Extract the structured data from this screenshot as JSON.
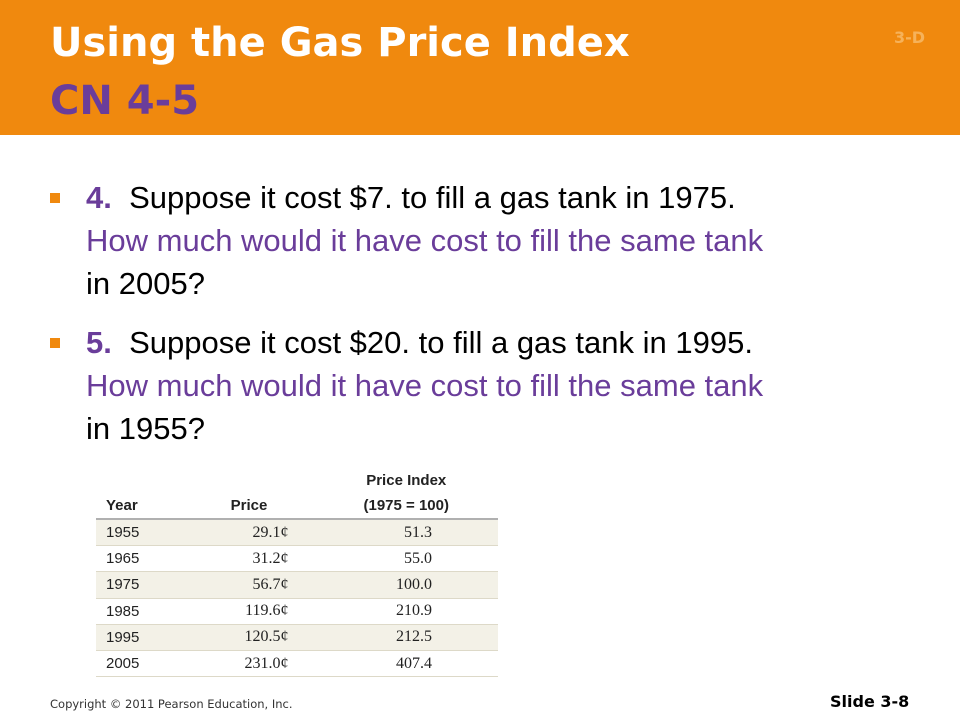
{
  "header": {
    "title_line1": "Using the Gas Price Index",
    "title_line2": "CN 4-5",
    "section_number": "3-D",
    "background_color": "#f0890e",
    "accent_color": "#6a3d9a"
  },
  "bullets": [
    {
      "number": "4.",
      "statement": "Suppose it cost $7. to fill a gas tank in 1975.",
      "question": "How much would it have cost to fill the same tank",
      "tail": "in 2005?"
    },
    {
      "number": "5.",
      "statement": "Suppose it cost $20. to fill a gas tank in 1995.",
      "question": "How much would it have cost to fill the same tank",
      "tail": "in 1955?"
    }
  ],
  "table": {
    "headers": {
      "year": "Year",
      "price": "Price",
      "index_top": "Price Index",
      "index_bottom": "(1975 = 100)"
    },
    "rows": [
      {
        "year": "1955",
        "price": "29.1¢",
        "index": "51.3"
      },
      {
        "year": "1965",
        "price": "31.2¢",
        "index": "55.0"
      },
      {
        "year": "1975",
        "price": "56.7¢",
        "index": "100.0"
      },
      {
        "year": "1985",
        "price": "119.6¢",
        "index": "210.9"
      },
      {
        "year": "1995",
        "price": "120.5¢",
        "index": "212.5"
      },
      {
        "year": "2005",
        "price": "231.0¢",
        "index": "407.4"
      }
    ]
  },
  "footer": {
    "copyright": "Copyright © 2011 Pearson Education, Inc.",
    "slide_number": "Slide 3-8"
  }
}
